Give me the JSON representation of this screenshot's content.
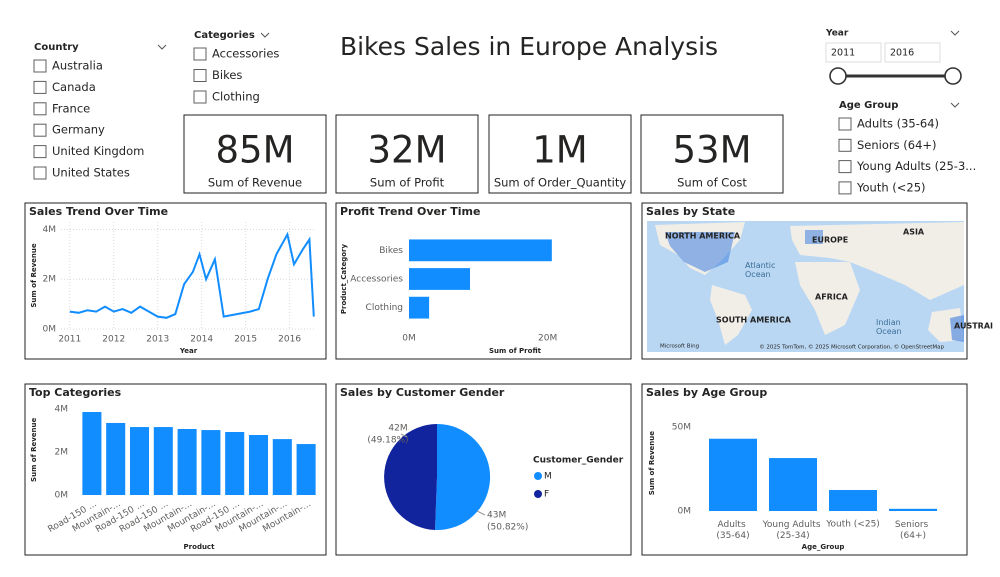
{
  "title": "Bikes Sales in Europe Analysis",
  "slicers": {
    "country": {
      "title": "Country",
      "items": [
        "Australia",
        "Canada",
        "France",
        "Germany",
        "United Kingdom",
        "United States"
      ]
    },
    "categories": {
      "title": "Categories",
      "items": [
        "Accessories",
        "Bikes",
        "Clothing"
      ]
    },
    "year": {
      "title": "Year",
      "from": "2011",
      "to": "2016"
    },
    "age_group": {
      "title": "Age Group",
      "items": [
        "Adults (35-64)",
        "Seniors (64+)",
        "Young Adults (25-3...",
        "Youth (<25)"
      ]
    }
  },
  "cards": [
    {
      "value": "85M",
      "label": "Sum of Revenue"
    },
    {
      "value": "32M",
      "label": "Sum of Profit"
    },
    {
      "value": "1M",
      "label": "Sum of Order_Quantity"
    },
    {
      "value": "53M",
      "label": "Sum of Cost"
    }
  ],
  "map": {
    "title": "Sales by State",
    "labels": [
      "NORTH AMERICA",
      "EUROPE",
      "ASIA",
      "Atlantic Ocean",
      "AFRICA",
      "SOUTH AMERICA",
      "Indian Ocean",
      "AUSTRAI"
    ],
    "provider": "Microsoft Bing",
    "copyright": "© 2025 TomTom, © 2025 Microsoft Corporation, © OpenStreetMap"
  },
  "chart_data": [
    {
      "type": "line",
      "title": "Sales Trend Over Time",
      "x_label": "Year",
      "y_label": "Sum of Revenue",
      "color": "#118DFF",
      "grid": true,
      "x": [
        2011.0,
        2011.2,
        2011.4,
        2011.6,
        2011.8,
        2012.0,
        2012.2,
        2012.4,
        2012.6,
        2012.8,
        2013.0,
        2013.2,
        2013.4,
        2013.6,
        2013.8,
        2013.95,
        2014.1,
        2014.3,
        2014.5,
        2014.8,
        2015.1,
        2015.3,
        2015.5,
        2015.7,
        2015.95,
        2016.1,
        2016.3,
        2016.45,
        2016.55
      ],
      "values": [
        700000,
        650000,
        750000,
        700000,
        900000,
        700000,
        800000,
        650000,
        900000,
        700000,
        500000,
        450000,
        600000,
        1800000,
        2300000,
        3000000,
        2000000,
        2800000,
        500000,
        600000,
        700000,
        800000,
        2000000,
        3000000,
        3800000,
        2600000,
        3200000,
        3600000,
        500000
      ],
      "xlim": [
        2010.8,
        2016.6
      ],
      "xticks": [
        2011,
        2012,
        2013,
        2014,
        2015,
        2016
      ],
      "ylim": [
        0,
        4300000
      ],
      "yticks": [
        {
          "value": 0,
          "label": "0M"
        },
        {
          "value": 2000000,
          "label": "2M"
        },
        {
          "value": 4000000,
          "label": "4M"
        }
      ]
    },
    {
      "type": "bar",
      "horizontal": true,
      "title": "Profit Trend Over Time",
      "x_label": "Sum of Profit",
      "y_label": "Product_Category",
      "color": "#118DFF",
      "categories": [
        "Bikes",
        "Accessories",
        "Clothing"
      ],
      "values": [
        20600000,
        8800000,
        2900000
      ],
      "xlim": [
        0,
        30000000
      ],
      "xticks": [
        {
          "value": 0,
          "label": "0M"
        },
        {
          "value": 20000000,
          "label": "20M"
        }
      ]
    },
    {
      "type": "bar",
      "title": "Top Categories",
      "x_label": "Product",
      "y_label": "Sum of Revenue",
      "color": "#118DFF",
      "categories": [
        "Road-150 ...",
        "Mountain-...",
        "Road-150 ...",
        "Road-150 ...",
        "Mountain-...",
        "Mountain-...",
        "Road-150 ...",
        "Mountain-...",
        "Mountain-...",
        "Mountain-..."
      ],
      "values": [
        3860000,
        3350000,
        3160000,
        3160000,
        3070000,
        3020000,
        2930000,
        2790000,
        2600000,
        2370000
      ],
      "ylim": [
        0,
        4200000
      ],
      "yticks": [
        {
          "value": 0,
          "label": "0M"
        },
        {
          "value": 2000000,
          "label": "2M"
        },
        {
          "value": 4000000,
          "label": "4M"
        }
      ]
    },
    {
      "type": "pie",
      "title": "Sales by Customer Gender",
      "legend_title": "Customer_Gender",
      "categories": [
        "M",
        "F"
      ],
      "values": [
        43000000,
        42000000
      ],
      "colors": [
        "#118DFF",
        "#12239E"
      ],
      "value_labels": [
        "43M",
        "42M"
      ],
      "percent_labels": [
        "(50.82%)",
        "(49.18%)"
      ]
    },
    {
      "type": "bar",
      "title": "Sales by Age Group",
      "x_label": "Age_Group",
      "y_label": "Sum of Revenue",
      "color": "#118DFF",
      "categories": [
        "Adults (35-64)",
        "Young Adults (25-34)",
        "Youth (<25)",
        "Seniors (64+)"
      ],
      "values": [
        43000000,
        31500000,
        12500000,
        1300000
      ],
      "ylim": [
        0,
        57000000
      ],
      "yticks": [
        {
          "value": 0,
          "label": "0M"
        },
        {
          "value": 50000000,
          "label": "50M"
        }
      ]
    }
  ]
}
